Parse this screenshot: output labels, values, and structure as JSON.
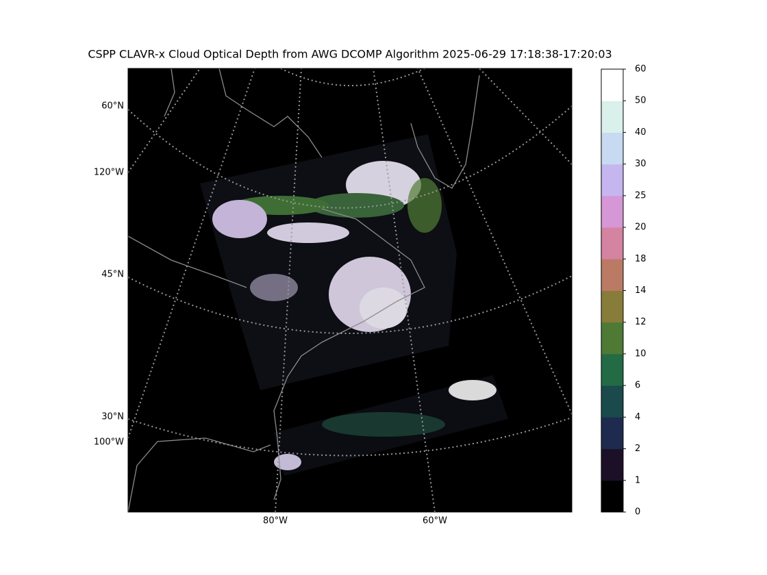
{
  "title": "CSPP CLAVR-x Cloud Optical Depth from AWG DCOMP Algorithm 2025-06-29 17:18:38-17:20:03",
  "map": {
    "lat_labels": [
      "60°N",
      "45°N",
      "30°N"
    ],
    "lon_labels_left": [
      "120°W",
      "100°W"
    ],
    "lon_labels_bottom": [
      "80°W",
      "60°W"
    ]
  },
  "colorbar": {
    "ticks": [
      0,
      1,
      2,
      4,
      6,
      10,
      12,
      14,
      18,
      20,
      25,
      30,
      40,
      50,
      60
    ],
    "colors": [
      "#000000",
      "#1c1028",
      "#1e2a4e",
      "#1a4a4c",
      "#226b45",
      "#4e7a35",
      "#877c3a",
      "#bb7a64",
      "#d483a0",
      "#d597d6",
      "#c6b6ef",
      "#c7daf2",
      "#daf0eb",
      "#ffffff"
    ]
  }
}
